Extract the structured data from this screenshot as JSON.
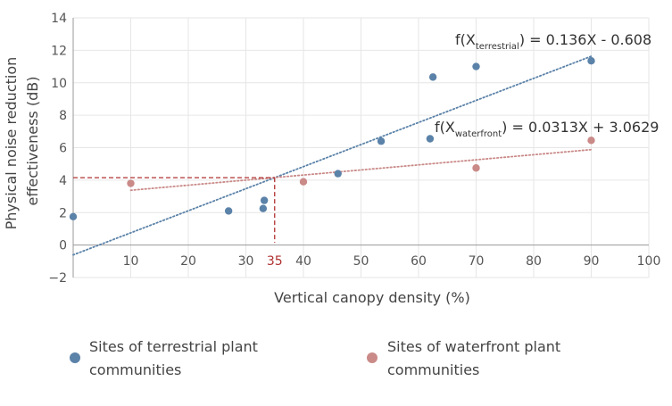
{
  "chart_data": {
    "type": "scatter",
    "xlabel": "Vertical canopy density (%)",
    "ylabel_lines": [
      "Physical noise reduction",
      "effectiveness (dB)"
    ],
    "xlim": [
      0,
      100
    ],
    "ylim": [
      -2,
      14
    ],
    "x_ticks": [
      10,
      20,
      30,
      40,
      50,
      60,
      70,
      80,
      90,
      100
    ],
    "y_ticks": [
      -2,
      0,
      2,
      4,
      6,
      8,
      10,
      12,
      14
    ],
    "highlight": {
      "x": 35,
      "y": 4.15,
      "label": "35",
      "color": "#b03030"
    },
    "series": [
      {
        "name_lines": [
          "Sites of terrestrial plant",
          "communities"
        ],
        "color": "#5b82a8",
        "points": [
          [
            0,
            1.75
          ],
          [
            27,
            2.1
          ],
          [
            33,
            2.25
          ],
          [
            33.2,
            2.75
          ],
          [
            46,
            4.4
          ],
          [
            53.5,
            6.4
          ],
          [
            62,
            6.55
          ],
          [
            62.5,
            10.35
          ],
          [
            70,
            11.0
          ],
          [
            90,
            11.35
          ]
        ],
        "fit": {
          "slope": 0.136,
          "intercept": -0.608,
          "x_range": [
            0,
            90
          ],
          "eq_prefix": "f(X",
          "eq_sub": "terrestrial",
          "eq_suffix": ") = 0.136X - 0.608"
        }
      },
      {
        "name_lines": [
          "Sites of waterfront plant",
          "communities"
        ],
        "color": "#c98a88",
        "points": [
          [
            10,
            3.8
          ],
          [
            40,
            3.9
          ],
          [
            70,
            4.75
          ],
          [
            90,
            6.45
          ]
        ],
        "fit": {
          "slope": 0.0313,
          "intercept": 3.0629,
          "x_range": [
            10,
            90
          ],
          "eq_prefix": "f(X",
          "eq_sub": "waterfront",
          "eq_suffix": ") = 0.0313X + 3.0629"
        }
      }
    ]
  }
}
